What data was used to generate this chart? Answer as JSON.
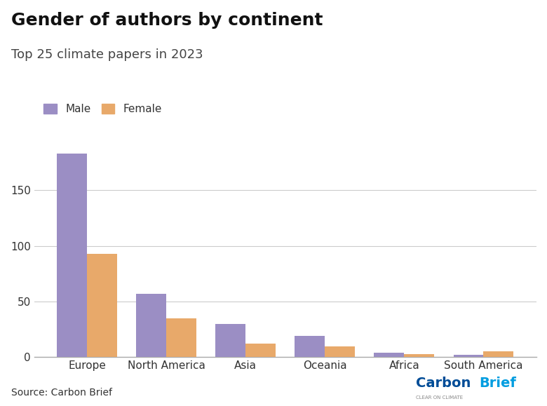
{
  "title": "Gender of authors by continent",
  "subtitle": "Top 25 climate papers in 2023",
  "categories": [
    "Europe",
    "North America",
    "Asia",
    "Oceania",
    "Africa",
    "South America"
  ],
  "male_values": [
    183,
    57,
    30,
    19,
    4,
    2
  ],
  "female_values": [
    93,
    35,
    12,
    10,
    3,
    5
  ],
  "male_color": "#9b8ec4",
  "female_color": "#e8a96a",
  "background_color": "#ffffff",
  "ylim": [
    0,
    200
  ],
  "yticks": [
    0,
    50,
    100,
    150
  ],
  "xlabel": "",
  "ylabel": "",
  "source_text": "Source: Carbon Brief",
  "legend_labels": [
    "Male",
    "Female"
  ],
  "bar_width": 0.38,
  "title_fontsize": 18,
  "subtitle_fontsize": 13,
  "tick_fontsize": 11,
  "source_fontsize": 10,
  "carbonbrief_color_carbon": "#004c97",
  "carbonbrief_color_brief": "#009de0",
  "carbonbrief_subtext_color": "#888888"
}
